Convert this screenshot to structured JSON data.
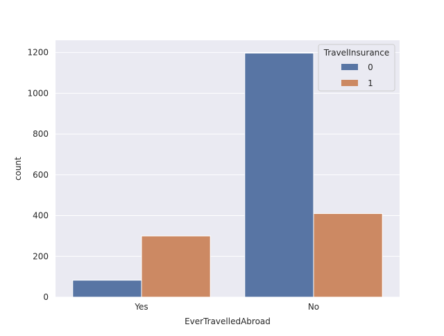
{
  "chart_data": {
    "type": "bar",
    "xlabel": "EverTravelledAbroad",
    "ylabel": "count",
    "categories": [
      "Yes",
      "No"
    ],
    "ylim": [
      0,
      1260
    ],
    "yticks": [
      0,
      200,
      400,
      600,
      800,
      1000,
      1200
    ],
    "grid": true,
    "legend": {
      "title": "TravelInsurance",
      "placement": "top-right"
    },
    "series": [
      {
        "name": "0",
        "color": "#5875a4",
        "values": [
          83,
          1197
        ]
      },
      {
        "name": "1",
        "color": "#cc8963",
        "values": [
          300,
          410
        ]
      }
    ]
  }
}
